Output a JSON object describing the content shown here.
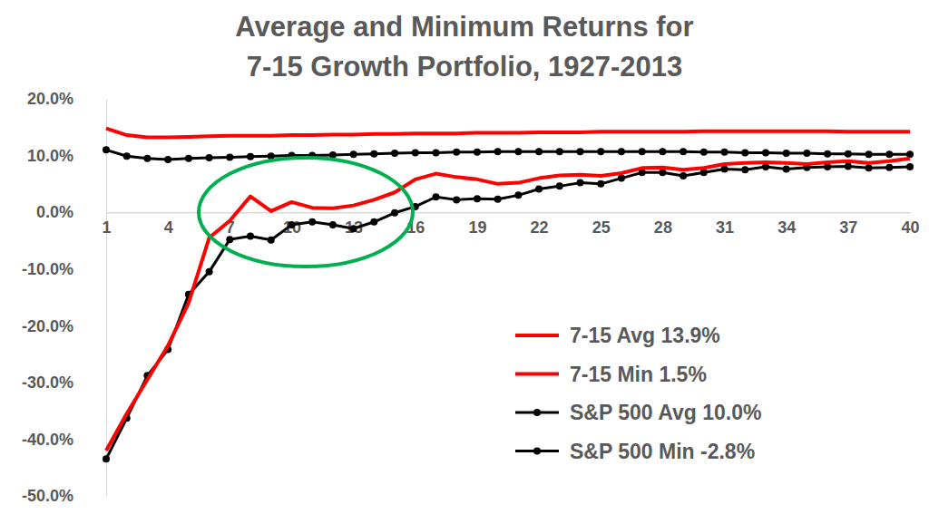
{
  "chart_data": {
    "type": "line",
    "title": "Average and Minimum Returns for\n7-15 Growth Portfolio, 1927-2013",
    "x": [
      1,
      2,
      3,
      4,
      5,
      6,
      7,
      8,
      9,
      10,
      11,
      12,
      13,
      14,
      15,
      16,
      17,
      18,
      19,
      20,
      21,
      22,
      23,
      24,
      25,
      26,
      27,
      28,
      29,
      30,
      31,
      32,
      33,
      34,
      35,
      36,
      37,
      38,
      39,
      40
    ],
    "xlim": [
      1,
      40
    ],
    "xticks": [
      1,
      4,
      7,
      10,
      13,
      16,
      19,
      22,
      25,
      28,
      31,
      34,
      37,
      40
    ],
    "ylim": [
      -50,
      20
    ],
    "yticks": [
      {
        "value": -50,
        "label": "-50.0%"
      },
      {
        "value": -40,
        "label": "-40.0%"
      },
      {
        "value": -30,
        "label": "-30.0%"
      },
      {
        "value": -20,
        "label": "-20.0%"
      },
      {
        "value": -10,
        "label": "-10.0%"
      },
      {
        "value": 0,
        "label": "0.0%"
      },
      {
        "value": 10,
        "label": "10.0%"
      },
      {
        "value": 20,
        "label": "20.0%"
      }
    ],
    "grid": false,
    "legend": "lower right",
    "series": [
      {
        "name": "7-15 Avg 13.9%",
        "color": "#ff0000",
        "marker": "none",
        "values": [
          14.8,
          13.6,
          13.2,
          13.2,
          13.3,
          13.4,
          13.5,
          13.5,
          13.5,
          13.6,
          13.6,
          13.7,
          13.7,
          13.8,
          13.8,
          13.9,
          13.9,
          13.9,
          14.0,
          14.0,
          14.0,
          14.1,
          14.1,
          14.1,
          14.2,
          14.2,
          14.2,
          14.2,
          14.2,
          14.3,
          14.3,
          14.3,
          14.3,
          14.3,
          14.3,
          14.3,
          14.2,
          14.2,
          14.2,
          14.2
        ]
      },
      {
        "name": "7-15 Min 1.5%",
        "color": "#ff0000",
        "marker": "none",
        "values": [
          -42.0,
          -35.5,
          -29.5,
          -23.5,
          -16.0,
          -4.5,
          -1.5,
          2.8,
          0.2,
          1.8,
          0.8,
          0.7,
          1.2,
          2.2,
          3.5,
          5.8,
          6.8,
          6.2,
          5.8,
          5.0,
          5.2,
          6.0,
          6.5,
          6.6,
          6.4,
          6.9,
          7.8,
          7.9,
          7.5,
          7.8,
          8.5,
          8.7,
          8.8,
          8.7,
          8.5,
          8.8,
          9.0,
          8.7,
          9.0,
          9.5
        ]
      },
      {
        "name": "S&P 500 Avg 10.0%",
        "color": "#000000",
        "marker": "circle",
        "values": [
          11.0,
          9.9,
          9.5,
          9.3,
          9.5,
          9.6,
          9.7,
          9.8,
          9.9,
          10.0,
          10.0,
          10.1,
          10.2,
          10.3,
          10.4,
          10.5,
          10.5,
          10.6,
          10.6,
          10.7,
          10.7,
          10.7,
          10.7,
          10.7,
          10.7,
          10.7,
          10.7,
          10.7,
          10.7,
          10.6,
          10.6,
          10.5,
          10.5,
          10.4,
          10.4,
          10.3,
          10.3,
          10.2,
          10.2,
          10.2
        ]
      },
      {
        "name": "S&P 500 Min -2.8%",
        "color": "#000000",
        "marker": "circle",
        "values": [
          -43.5,
          -36.3,
          -28.8,
          -24.2,
          -14.5,
          -10.5,
          -4.8,
          -4.2,
          -4.9,
          -2.2,
          -1.7,
          -2.2,
          -2.9,
          -1.7,
          -0.1,
          1.0,
          2.7,
          2.2,
          2.4,
          2.3,
          3.0,
          4.1,
          4.6,
          5.2,
          5.0,
          6.0,
          7.0,
          7.0,
          6.4,
          7.0,
          7.6,
          7.5,
          8.0,
          7.6,
          7.9,
          8.0,
          8.1,
          7.8,
          7.9,
          8.0
        ]
      }
    ]
  }
}
